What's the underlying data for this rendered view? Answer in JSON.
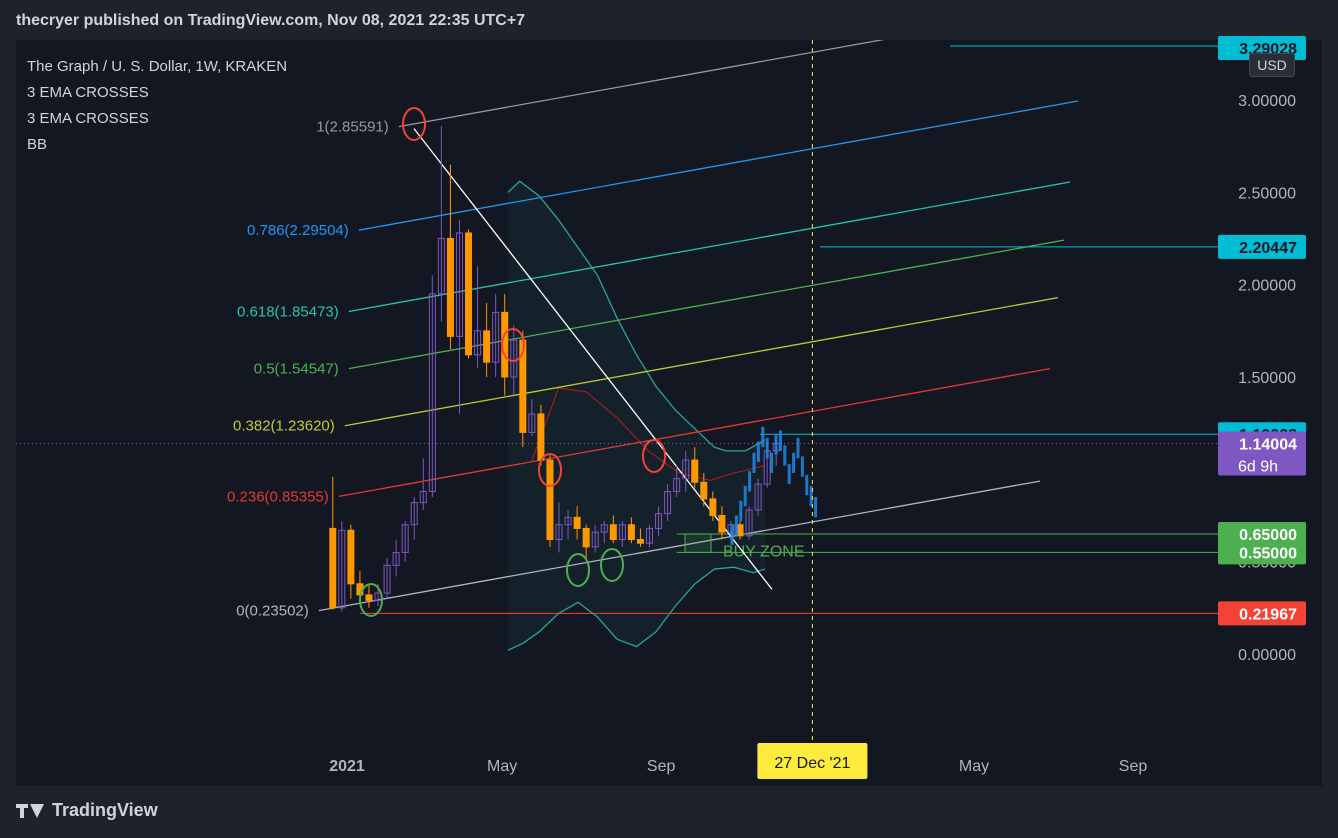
{
  "header": {
    "published": "thecryer published on TradingView.com, Nov 08, 2021 22:35 UTC+7"
  },
  "legend": {
    "symbol": "The Graph / U. S. Dollar, 1W, KRAKEN",
    "indicators": [
      "3 EMA CROSSES",
      "3 EMA CROSSES",
      "BB"
    ]
  },
  "footer": {
    "brand": "TradingView"
  },
  "price_axis": {
    "currency": "USD"
  },
  "colors": {
    "background": "#131722",
    "up_candle": "#7e57c2",
    "down_candle": "#ff9800",
    "bb_line": "#26a69a",
    "trendline": "#ffffff",
    "fib_0": "#b2b5be",
    "fib_0236": "#e53935",
    "fib_0382": "#c0ca33",
    "fib_05": "#4caf50",
    "fib_0618": "#26c6a6",
    "fib_0786": "#2196f3",
    "fib_1": "#9598a1",
    "projection": "#1e88e5",
    "buy_zone": "#4caf50",
    "current_price": "#7e57c2"
  },
  "chart_data": {
    "type": "candlestick",
    "title": "The Graph / U. S. Dollar, 1W, KRAKEN",
    "xlabel": "",
    "ylabel": "",
    "x_ticks": [
      {
        "label": "2021",
        "date": "2021-01-01"
      },
      {
        "label": "May",
        "date": "2021-05-01"
      },
      {
        "label": "Sep",
        "date": "2021-09-01"
      },
      {
        "label": "May",
        "date": "2022-05-01"
      },
      {
        "label": "Sep",
        "date": "2022-09-01"
      }
    ],
    "x_range": [
      "2020-12-07",
      "2022-11-07"
    ],
    "y_ticks": [
      0.0,
      0.5,
      1.0,
      1.5,
      2.0,
      2.5,
      3.0
    ],
    "y_tick_labels": [
      "0.00000",
      "0.50000",
      "1.00000",
      "1.50000",
      "2.00000",
      "2.50000",
      "3.00000"
    ],
    "ylim": [
      -0.45,
      3.45
    ],
    "crosshair_date_label": "27 Dec '21",
    "crosshair_date": "2021-12-27",
    "price_labels": [
      {
        "value": 3.29028,
        "text": "3.29028",
        "color": "#00bcd4"
      },
      {
        "value": 2.20447,
        "text": "2.20447",
        "color": "#00bcd4"
      },
      {
        "value": 1.19028,
        "text": "1.19028",
        "color": "#00bcd4"
      },
      {
        "value": 1.14004,
        "text": "1.14004",
        "sub": "6d 9h",
        "color": "#7e57c2"
      },
      {
        "value": 0.65,
        "text": "0.65000",
        "color": "#4caf50"
      },
      {
        "value": 0.55,
        "text": "0.55000",
        "color": "#4caf50"
      },
      {
        "value": 0.21967,
        "text": "0.21967",
        "color": "#f44336"
      }
    ],
    "fib_channel": {
      "levels": [
        {
          "ratio": 0,
          "label": "0(0.23502)",
          "value": 0.23502,
          "color": "#b2b5be"
        },
        {
          "ratio": 0.236,
          "label": "0.236(0.85355)",
          "value": 0.85355,
          "color": "#e53935"
        },
        {
          "ratio": 0.382,
          "label": "0.382(1.23620)",
          "value": 1.2362,
          "color": "#c0ca33"
        },
        {
          "ratio": 0.5,
          "label": "0.5(1.54547)",
          "value": 1.54547,
          "color": "#4caf50"
        },
        {
          "ratio": 0.618,
          "label": "0.618(1.85473)",
          "value": 1.85473,
          "color": "#26c6a6"
        },
        {
          "ratio": 0.786,
          "label": "0.786(2.29504)",
          "value": 2.29504,
          "color": "#2196f3"
        },
        {
          "ratio": 1,
          "label": "1(2.85591)",
          "value": 2.85591,
          "color": "#9598a1"
        }
      ],
      "start_date": "2020-12-21",
      "end_date": "2022-06-20",
      "slope_per_week": 0.0088
    },
    "trendline": {
      "from": {
        "date": "2021-02-15",
        "value": 2.856
      },
      "to": {
        "date": "2021-11-08",
        "value": 0.35
      }
    },
    "buy_zone": {
      "label": "BUY ZONE",
      "low": 0.55,
      "high": 0.65,
      "from_date": "2021-09-13",
      "to_date": "2021-12-27"
    },
    "support_line": {
      "value": 0.21967
    },
    "resistance_line": {
      "value": 1.19028
    },
    "candles": [
      {
        "date": "2020-12-21",
        "open": 0.68,
        "high": 0.96,
        "low": 0.24,
        "close": 0.25
      },
      {
        "date": "2020-12-28",
        "open": 0.25,
        "high": 0.72,
        "low": 0.23,
        "close": 0.67
      },
      {
        "date": "2021-01-04",
        "open": 0.67,
        "high": 0.7,
        "low": 0.3,
        "close": 0.38
      },
      {
        "date": "2021-01-11",
        "open": 0.38,
        "high": 0.45,
        "low": 0.28,
        "close": 0.32
      },
      {
        "date": "2021-01-18",
        "open": 0.32,
        "high": 0.38,
        "low": 0.25,
        "close": 0.29
      },
      {
        "date": "2021-01-25",
        "open": 0.29,
        "high": 0.38,
        "low": 0.26,
        "close": 0.33
      },
      {
        "date": "2021-02-01",
        "open": 0.33,
        "high": 0.52,
        "low": 0.3,
        "close": 0.48
      },
      {
        "date": "2021-02-08",
        "open": 0.48,
        "high": 0.62,
        "low": 0.42,
        "close": 0.55
      },
      {
        "date": "2021-02-15",
        "open": 0.55,
        "high": 0.72,
        "low": 0.5,
        "close": 0.7
      },
      {
        "date": "2021-02-22",
        "open": 0.7,
        "high": 0.85,
        "low": 0.62,
        "close": 0.82
      },
      {
        "date": "2021-03-01",
        "open": 0.82,
        "high": 1.06,
        "low": 0.78,
        "close": 0.88
      },
      {
        "date": "2021-03-08",
        "open": 0.88,
        "high": 2.05,
        "low": 0.85,
        "close": 1.95
      },
      {
        "date": "2021-03-15",
        "open": 1.95,
        "high": 2.86,
        "low": 1.8,
        "close": 2.25
      },
      {
        "date": "2021-03-22",
        "open": 2.25,
        "high": 2.65,
        "low": 1.65,
        "close": 1.72
      },
      {
        "date": "2021-03-29",
        "open": 1.72,
        "high": 2.35,
        "low": 1.3,
        "close": 2.28
      },
      {
        "date": "2021-04-05",
        "open": 2.28,
        "high": 2.3,
        "low": 1.6,
        "close": 1.62
      },
      {
        "date": "2021-04-12",
        "open": 1.62,
        "high": 2.1,
        "low": 1.55,
        "close": 1.75
      },
      {
        "date": "2021-04-19",
        "open": 1.75,
        "high": 1.9,
        "low": 1.5,
        "close": 1.58
      },
      {
        "date": "2021-04-26",
        "open": 1.58,
        "high": 1.95,
        "low": 1.5,
        "close": 1.85
      }
    ],
    "bb": {
      "upper": [
        [
          2.02,
          2.5
        ],
        [
          2.05,
          2.56
        ],
        [
          2.1,
          2.48
        ],
        [
          2.15,
          2.35
        ],
        [
          2.2,
          2.2
        ],
        [
          2.25,
          2.05
        ],
        [
          2.3,
          1.82
        ],
        [
          2.35,
          1.62
        ],
        [
          2.4,
          1.45
        ],
        [
          2.45,
          1.32
        ],
        [
          2.5,
          1.22
        ],
        [
          2.55,
          1.12
        ],
        [
          2.58,
          1.1
        ],
        [
          2.63,
          1.1
        ],
        [
          2.68,
          1.16
        ]
      ],
      "lower": [
        [
          2.02,
          0.02
        ],
        [
          2.06,
          0.06
        ],
        [
          2.1,
          0.12
        ],
        [
          2.15,
          0.22
        ],
        [
          2.2,
          0.28
        ],
        [
          2.25,
          0.2
        ],
        [
          2.3,
          0.08
        ],
        [
          2.35,
          0.04
        ],
        [
          2.4,
          0.12
        ],
        [
          2.45,
          0.26
        ],
        [
          2.5,
          0.38
        ],
        [
          2.55,
          0.46
        ],
        [
          2.6,
          0.47
        ],
        [
          2.65,
          0.44
        ],
        [
          2.68,
          0.46
        ]
      ],
      "basis": [
        [
          2.08,
          1.04
        ],
        [
          2.15,
          1.44
        ],
        [
          2.22,
          1.42
        ],
        [
          2.3,
          1.28
        ],
        [
          2.38,
          1.1
        ],
        [
          2.46,
          0.98
        ],
        [
          2.54,
          0.94
        ],
        [
          2.6,
          0.98
        ],
        [
          2.68,
          1.02
        ]
      ]
    }
  }
}
